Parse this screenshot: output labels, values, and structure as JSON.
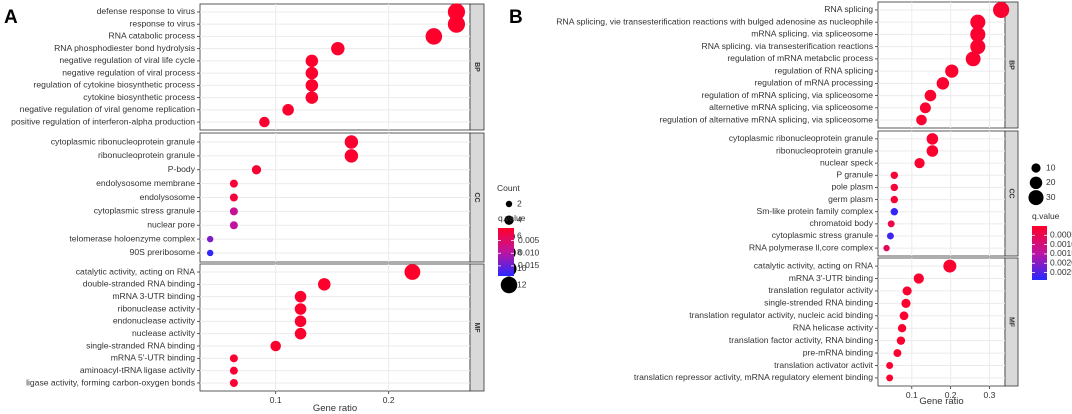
{
  "chart_data": [
    {
      "type": "scatter",
      "panel_letter": "A",
      "xlabel": "Gene ratio",
      "xlim": [
        0.033,
        0.272
      ],
      "x_ticks": [
        0.1,
        0.2
      ],
      "x_tick_labels": [
        "0.1",
        "0.2"
      ],
      "size_legend": {
        "title": "Count",
        "values": [
          2,
          4,
          6,
          8,
          10,
          12
        ],
        "labels": [
          "2",
          "4",
          "6",
          "8",
          "10",
          "12"
        ],
        "range": [
          2,
          13
        ]
      },
      "color_legend": {
        "title": "q.value",
        "ticks": [
          0.005,
          0.01,
          0.015
        ],
        "tick_labels": [
          "0.005",
          "0.010",
          "0.015"
        ],
        "range": [
          0.0,
          0.019
        ]
      },
      "groups": [
        {
          "name": "BP",
          "terms": [
            {
              "label": "defense response to virus",
              "x": 0.26,
              "count": 13,
              "q": 0.0002
            },
            {
              "label": "response to virus",
              "x": 0.26,
              "count": 13,
              "q": 0.0002
            },
            {
              "label": "RNA catabolic process",
              "x": 0.24,
              "count": 12,
              "q": 0.0003
            },
            {
              "label": "RNA phosphodiester bond hydrolysis",
              "x": 0.155,
              "count": 8,
              "q": 0.0004
            },
            {
              "label": "negative regulation of viral life cycle",
              "x": 0.132,
              "count": 7,
              "q": 0.0005
            },
            {
              "label": "negative regulation of viral process",
              "x": 0.132,
              "count": 7,
              "q": 0.0005
            },
            {
              "label": "regulation of cytokine biosynthetic process",
              "x": 0.132,
              "count": 7,
              "q": 0.0005
            },
            {
              "label": "cytokine biosynthetic process",
              "x": 0.132,
              "count": 7,
              "q": 0.0005
            },
            {
              "label": "negative regulation of viral genome replication",
              "x": 0.111,
              "count": 6,
              "q": 0.0006
            },
            {
              "label": "positive regulation of interferon-alpha production",
              "x": 0.09,
              "count": 5,
              "q": 0.0007
            }
          ]
        },
        {
          "name": "CC",
          "terms": [
            {
              "label": "cytoplasmic ribonucleoprotein granule",
              "x": 0.167,
              "count": 8,
              "q": 0.0006
            },
            {
              "label": "ribonucleoprotein granule",
              "x": 0.167,
              "count": 8,
              "q": 0.0006
            },
            {
              "label": "P-body",
              "x": 0.083,
              "count": 4,
              "q": 0.001
            },
            {
              "label": "endolysosome membrane",
              "x": 0.063,
              "count": 3,
              "q": 0.0012
            },
            {
              "label": "endolysosome",
              "x": 0.063,
              "count": 3,
              "q": 0.0014
            },
            {
              "label": "cytoplasmic stress granule",
              "x": 0.063,
              "count": 3,
              "q": 0.0085
            },
            {
              "label": "nuclear pore",
              "x": 0.063,
              "count": 3,
              "q": 0.0095
            },
            {
              "label": "telomerase holoenzyme complex",
              "x": 0.042,
              "count": 2,
              "q": 0.0135
            },
            {
              "label": "90S preribosome",
              "x": 0.042,
              "count": 2,
              "q": 0.0185
            }
          ]
        },
        {
          "name": "MF",
          "terms": [
            {
              "label": "catalytic activity, acting on RNA",
              "x": 0.221,
              "count": 11,
              "q": 0.0002
            },
            {
              "label": "double-stranded RNA binding",
              "x": 0.143,
              "count": 7,
              "q": 0.0003
            },
            {
              "label": "mRNA 3-UTR binding",
              "x": 0.122,
              "count": 6,
              "q": 0.0004
            },
            {
              "label": "ribonuclease activity",
              "x": 0.122,
              "count": 6,
              "q": 0.0004
            },
            {
              "label": "endonuclease activity",
              "x": 0.122,
              "count": 6,
              "q": 0.0004
            },
            {
              "label": "nuclease activity",
              "x": 0.122,
              "count": 6,
              "q": 0.0004
            },
            {
              "label": "single-stranded RNA binding",
              "x": 0.1,
              "count": 5,
              "q": 0.0005
            },
            {
              "label": "mRNA 5'-UTR binding",
              "x": 0.063,
              "count": 3,
              "q": 0.0008
            },
            {
              "label": "aminoacyl-tRNA ligase activity",
              "x": 0.063,
              "count": 3,
              "q": 0.001
            },
            {
              "label": "ligase activity, forming carbon-oxygen bonds",
              "x": 0.063,
              "count": 3,
              "q": 0.001
            }
          ]
        }
      ]
    },
    {
      "type": "scatter",
      "panel_letter": "B",
      "xlabel": "Gene ratio",
      "xlim": [
        0.013,
        0.34
      ],
      "x_ticks": [
        0.1,
        0.2,
        0.3
      ],
      "x_tick_labels": [
        "0.1",
        "0.2",
        "0.3"
      ],
      "size_legend": {
        "title": "",
        "values": [
          10,
          20,
          30
        ],
        "labels": [
          "10",
          "20",
          "30"
        ],
        "range": [
          2,
          36
        ]
      },
      "color_legend": {
        "title": "q.value",
        "ticks": [
          0.0005,
          0.001,
          0.0015,
          0.002,
          0.0025
        ],
        "tick_labels": [
          "0.0005",
          "0.0010",
          "0.0015",
          "0.0020",
          "0.0025"
        ],
        "range": [
          0.0,
          0.0029
        ]
      },
      "groups": [
        {
          "name": "BP",
          "terms": [
            {
              "label": "RNA splicing",
              "x": 0.33,
              "count": 35,
              "q": 0.0001
            },
            {
              "label": "RNA splicing, vie transesterification reactions with bulged adenosine as nucleophile",
              "x": 0.27,
              "count": 30,
              "q": 0.0001
            },
            {
              "label": "mRNA splicing. via spliceosome",
              "x": 0.27,
              "count": 30,
              "q": 0.0001
            },
            {
              "label": "RNA splicing. via transesterification reactions",
              "x": 0.27,
              "count": 30,
              "q": 0.0001
            },
            {
              "label": "regulation of mRNA metabclic process",
              "x": 0.258,
              "count": 29,
              "q": 0.0001
            },
            {
              "label": "regulation of RNA splicing",
              "x": 0.203,
              "count": 23,
              "q": 0.0001
            },
            {
              "label": "regulation of mRNA processing",
              "x": 0.18,
              "count": 20,
              "q": 0.0001
            },
            {
              "label": "regulation of mRNA splicing, via spliceosome",
              "x": 0.148,
              "count": 17,
              "q": 0.0001
            },
            {
              "label": "alternetive mRNA splicing, via spliceosome",
              "x": 0.135,
              "count": 15,
              "q": 0.0001
            },
            {
              "label": "regulation of alternative mRNA splicing, via spliceosome",
              "x": 0.125,
              "count": 14,
              "q": 0.0001
            }
          ]
        },
        {
          "name": "CC",
          "terms": [
            {
              "label": "cytoplasmic ribonucleoprotein granule",
              "x": 0.153,
              "count": 17,
              "q": 0.0001
            },
            {
              "label": "ribonucleoprotein granule",
              "x": 0.153,
              "count": 17,
              "q": 0.0001
            },
            {
              "label": "nuclear speck",
              "x": 0.12,
              "count": 13,
              "q": 0.0001
            },
            {
              "label": "P granule",
              "x": 0.055,
              "count": 6,
              "q": 0.0002
            },
            {
              "label": "pole plasm",
              "x": 0.055,
              "count": 6,
              "q": 0.0002
            },
            {
              "label": "germ plasm",
              "x": 0.055,
              "count": 6,
              "q": 0.0002
            },
            {
              "label": "Sm-like protein family complex",
              "x": 0.055,
              "count": 6,
              "q": 0.0028
            },
            {
              "label": "chromatoid body",
              "x": 0.047,
              "count": 5,
              "q": 0.0004
            },
            {
              "label": "cytoplasmic stress granule",
              "x": 0.045,
              "count": 5,
              "q": 0.0027
            },
            {
              "label": "RNA polymerase ll,core complex",
              "x": 0.035,
              "count": 4,
              "q": 0.0006
            }
          ]
        },
        {
          "name": "MF",
          "terms": [
            {
              "label": "catalytic activity, acting on RNA",
              "x": 0.198,
              "count": 22,
              "q": 0.0001
            },
            {
              "label": "mRNA 3'-UTR binding",
              "x": 0.118,
              "count": 13,
              "q": 0.0001
            },
            {
              "label": "translation regulator activity",
              "x": 0.088,
              "count": 10,
              "q": 0.0001
            },
            {
              "label": "single-strended RNA binding",
              "x": 0.085,
              "count": 10,
              "q": 0.0001
            },
            {
              "label": "translation regulator activity, nucleic acid binding",
              "x": 0.08,
              "count": 9,
              "q": 0.0001
            },
            {
              "label": "RNA helicase activity",
              "x": 0.075,
              "count": 8,
              "q": 0.0001
            },
            {
              "label": "translation factor activity, RNA binding",
              "x": 0.072,
              "count": 8,
              "q": 0.0001
            },
            {
              "label": "pre-mRNA binding",
              "x": 0.063,
              "count": 7,
              "q": 0.0001
            },
            {
              "label": "translation activator activit",
              "x": 0.043,
              "count": 5,
              "q": 0.0001
            },
            {
              "label": "translaticn repressor activity, mRNA regulatory element binding",
              "x": 0.043,
              "count": 5,
              "q": 0.0001
            }
          ]
        }
      ]
    }
  ]
}
